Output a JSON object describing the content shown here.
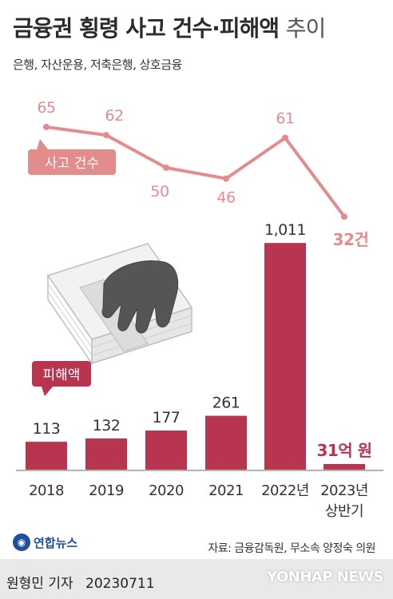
{
  "title": {
    "main": "금융권 횡령 사고 건수·피해액",
    "trend": "추이"
  },
  "subtitle": "은행, 자산운용, 저축은행, 상호금융",
  "source": "자료: 금융감독원, 무소속 양정숙 의원",
  "logo": "연합뉴스",
  "byline": {
    "author": "원형민 기자",
    "date": "20230711"
  },
  "watermark": "YONHAP NEWS",
  "colors": {
    "line": "#e38c8c",
    "bar": "#b8354f",
    "label_dark": "#b8354f",
    "axis": "#999999"
  },
  "chart_data": {
    "type": "bar+line",
    "categories": [
      "2018",
      "2019",
      "2020",
      "2021",
      "2022년",
      "2023년\n상반기"
    ],
    "series": [
      {
        "name": "사고 건수",
        "type": "line",
        "values": [
          65,
          62,
          50,
          46,
          61,
          32
        ],
        "labels": [
          "65",
          "62",
          "50",
          "46",
          "61",
          "32건"
        ]
      },
      {
        "name": "피해액",
        "type": "bar",
        "values": [
          113,
          132,
          177,
          261,
          1011,
          31
        ],
        "labels": [
          "113",
          "132",
          "177",
          "261",
          "1,011",
          "31억 원"
        ]
      }
    ],
    "legend_position": "inline",
    "grid": false
  }
}
